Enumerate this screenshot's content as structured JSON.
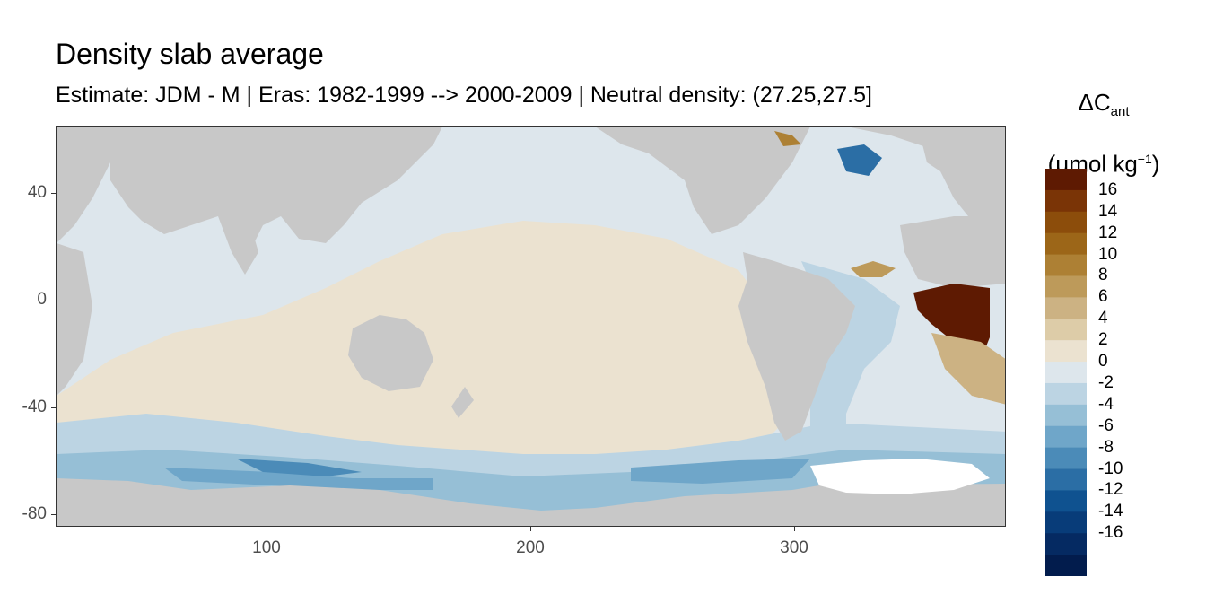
{
  "title": "Density slab average",
  "subtitle": "Estimate: JDM - M | Eras: 1982-1999 --> 2000-2009 | Neutral density: (27.25,27.5]",
  "legend": {
    "symbol": "ΔC",
    "symbol_sub": "ant",
    "unit_prefix": "(μmol kg",
    "unit_sup": "−1",
    "unit_suffix": ")",
    "labels": [
      "16",
      "14",
      "12",
      "10",
      "8",
      "6",
      "4",
      "2",
      "0",
      "-2",
      "-4",
      "-6",
      "-8",
      "-10",
      "-12",
      "-14",
      "-16"
    ],
    "colors": [
      "#5e1a02",
      "#7a3406",
      "#8c4d0b",
      "#9c6618",
      "#ad8034",
      "#bd9a5a",
      "#ccb283",
      "#ddcca8",
      "#ebe2d0",
      "#dde6ec",
      "#bcd4e3",
      "#96bfd6",
      "#6fa6c9",
      "#4b8bb8",
      "#2b6ea5",
      "#0f5290",
      "#083c79",
      "#052a62",
      "#021c4d"
    ]
  },
  "x_axis": {
    "ticks": [
      "100",
      "200",
      "300"
    ]
  },
  "y_axis": {
    "ticks": [
      "40",
      "0",
      "-40",
      "-80"
    ]
  },
  "colors": {
    "land": "#c8c8c8",
    "no_data": "#ffffff",
    "background": "#ffffff"
  },
  "map_data": {
    "type": "gridded-raster",
    "x_range": [
      20,
      380
    ],
    "y_range": [
      -85,
      65
    ]
  }
}
